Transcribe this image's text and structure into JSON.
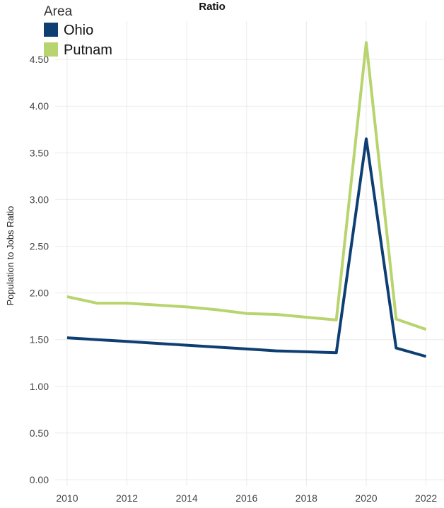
{
  "chart_data": {
    "type": "line",
    "title": "Ratio",
    "xlabel": "",
    "ylabel": "Population to Jobs Ratio",
    "x": [
      2010,
      2011,
      2012,
      2013,
      2014,
      2015,
      2016,
      2017,
      2018,
      2019,
      2020,
      2021,
      2022
    ],
    "xticks": [
      "2010",
      "2012",
      "2014",
      "2016",
      "2018",
      "2020",
      "2022"
    ],
    "yticks": [
      "0.00",
      "0.50",
      "1.00",
      "1.50",
      "2.00",
      "2.50",
      "3.00",
      "3.50",
      "4.00",
      "4.50"
    ],
    "ylim": [
      0,
      4.6
    ],
    "grid": true,
    "legend_title": "Area",
    "legend_position": "top-left",
    "series": [
      {
        "name": "Ohio",
        "color": "#0e3f73",
        "values": [
          1.52,
          1.5,
          1.48,
          1.46,
          1.44,
          1.42,
          1.4,
          1.38,
          1.37,
          1.36,
          3.65,
          1.41,
          1.32
        ]
      },
      {
        "name": "Putnam",
        "color": "#b8d46e",
        "values": [
          1.96,
          1.89,
          1.89,
          1.87,
          1.85,
          1.82,
          1.78,
          1.77,
          1.74,
          1.71,
          4.68,
          1.72,
          1.61
        ]
      }
    ]
  }
}
